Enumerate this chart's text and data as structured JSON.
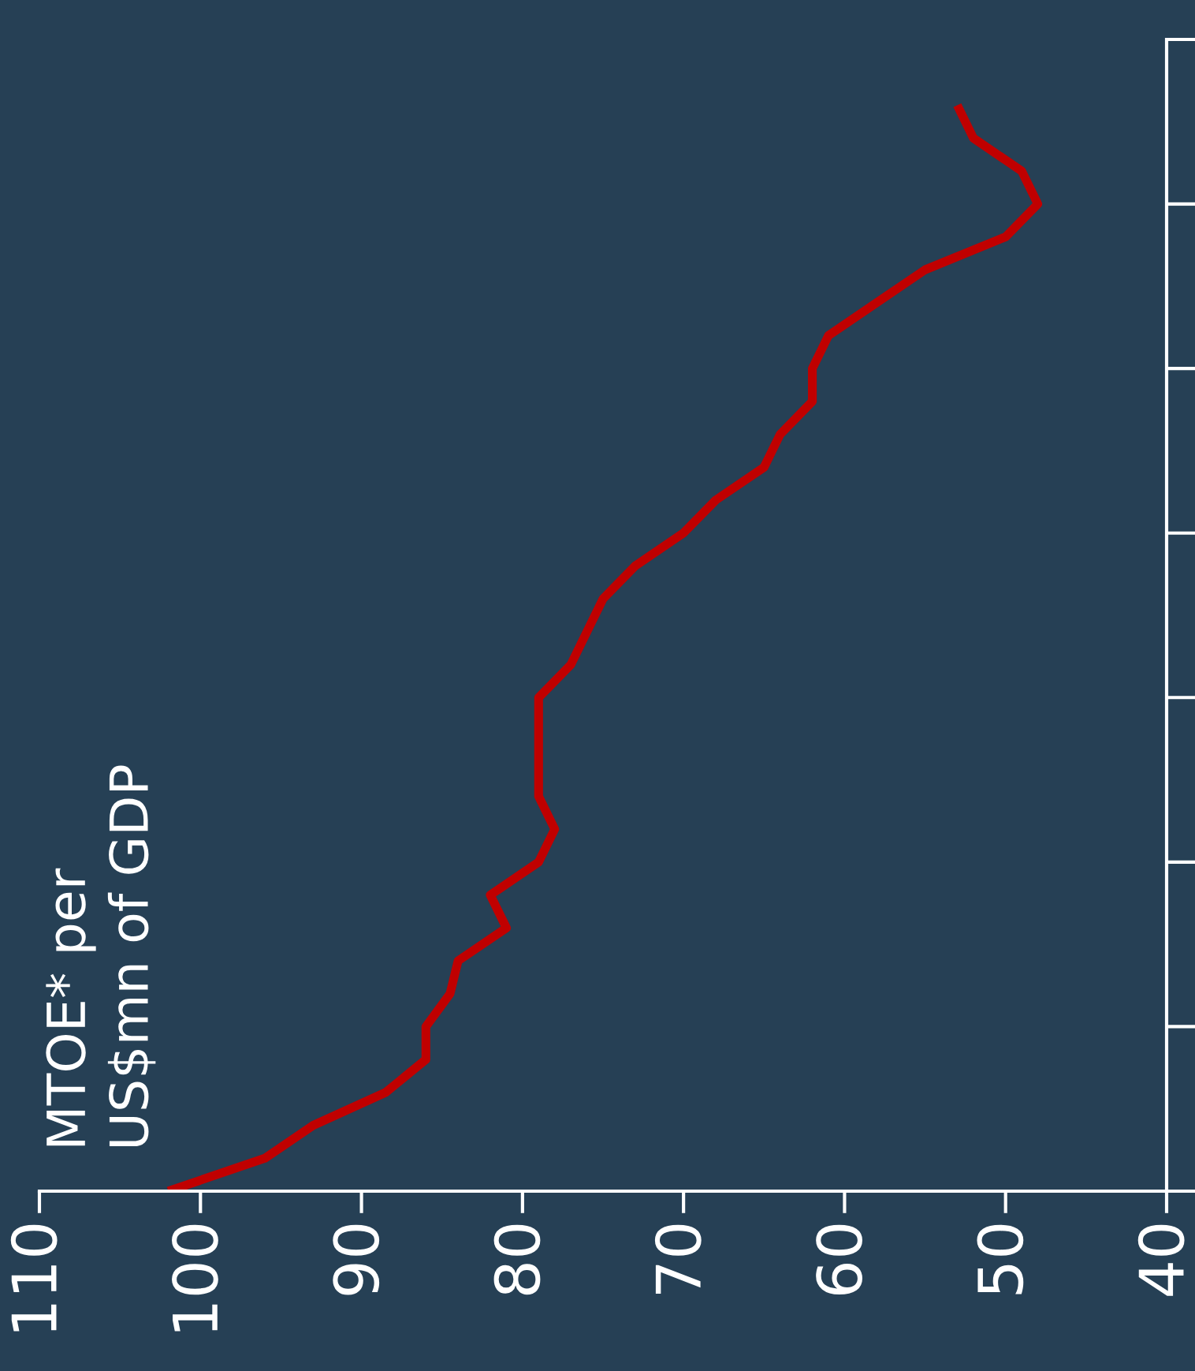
{
  "chart_data": {
    "type": "line",
    "orientation": "horizontal",
    "annotations": [
      "MTOE* per\nUS$mn of GDP"
    ],
    "categories": [
      null,
      null,
      null,
      null,
      null,
      null,
      null,
      null,
      null,
      null,
      null,
      null,
      null,
      null,
      null,
      null,
      null,
      null,
      null,
      null,
      null,
      null,
      null,
      null,
      null,
      null,
      null,
      null,
      null,
      null,
      null,
      null,
      null,
      null,
      null,
      null
    ],
    "series": [
      {
        "color": "#c00000",
        "values": [
          null,
          null,
          53,
          52,
          49,
          48,
          50,
          55,
          58,
          61,
          62,
          62,
          64,
          65,
          68,
          70,
          73,
          75,
          76,
          77,
          79,
          79,
          79,
          79,
          78,
          79,
          82,
          81,
          84,
          84.5,
          86,
          86,
          88.5,
          93,
          96,
          102
        ]
      }
    ],
    "xlim": [
      110,
      40
    ],
    "xticks": [
      110,
      100,
      90,
      80,
      70,
      60,
      50,
      40
    ],
    "tick_labels": "x",
    "marker": "none",
    "line_style": "solid"
  }
}
